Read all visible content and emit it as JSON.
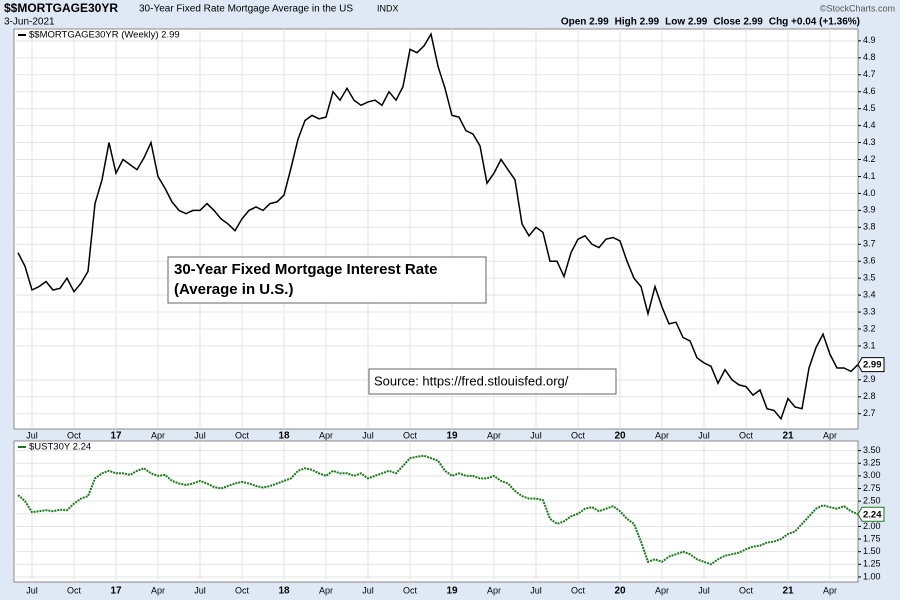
{
  "header": {
    "symbol": "$$MORTGAGE30YR",
    "description": "30-Year Fixed Rate Mortgage Average in the US",
    "exchange": "INDX",
    "date": "3-Jun-2021",
    "quote": [
      "Open 2.99",
      "High 2.99",
      "Low 2.99",
      "Close 2.99",
      "Chg +0.04 (+1.36%)"
    ],
    "brand": "©StockCharts.com"
  },
  "chart_data": [
    {
      "type": "line",
      "legend": "$$MORTGAGE30YR (Weekly) 2.99",
      "last_label": "2.99",
      "annotations": [
        "30-Year Fixed Mortgage Interest Rate",
        "(Average in U.S.)",
        "Source: https://fred.stlouisfed.org/"
      ],
      "categories": [
        null,
        null,
        "Jul",
        null,
        null,
        null,
        null,
        null,
        "Oct",
        null,
        null,
        null,
        null,
        null,
        "17",
        null,
        null,
        null,
        null,
        null,
        "Apr",
        null,
        null,
        null,
        null,
        null,
        "Jul",
        null,
        null,
        null,
        null,
        null,
        "Oct",
        null,
        null,
        null,
        null,
        null,
        "18",
        null,
        null,
        null,
        null,
        null,
        "Apr",
        null,
        null,
        null,
        null,
        null,
        "Jul",
        null,
        null,
        null,
        null,
        null,
        "Oct",
        null,
        null,
        null,
        null,
        null,
        "19",
        null,
        null,
        null,
        null,
        null,
        "Apr",
        null,
        null,
        null,
        null,
        null,
        "Jul",
        null,
        null,
        null,
        null,
        null,
        "Oct",
        null,
        null,
        null,
        null,
        null,
        "20",
        null,
        null,
        null,
        null,
        null,
        "Apr",
        null,
        null,
        null,
        null,
        null,
        "Jul",
        null,
        null,
        null,
        null,
        null,
        "Oct",
        null,
        null,
        null,
        null,
        null,
        "21",
        null,
        null,
        null,
        null,
        null,
        "Apr",
        null,
        null,
        null,
        null
      ],
      "series": [
        {
          "name": "$$MORTGAGE30YR",
          "color": "#000000",
          "values": [
            3.65,
            3.57,
            3.43,
            3.45,
            3.48,
            3.43,
            3.44,
            3.5,
            3.42,
            3.47,
            3.54,
            3.94,
            4.08,
            4.3,
            4.12,
            4.2,
            4.17,
            4.14,
            4.21,
            4.3,
            4.1,
            4.03,
            3.95,
            3.9,
            3.88,
            3.9,
            3.9,
            3.94,
            3.9,
            3.85,
            3.82,
            3.78,
            3.85,
            3.9,
            3.92,
            3.9,
            3.94,
            3.95,
            3.99,
            4.15,
            4.32,
            4.43,
            4.46,
            4.44,
            4.45,
            4.6,
            4.55,
            4.62,
            4.55,
            4.52,
            4.54,
            4.55,
            4.52,
            4.6,
            4.55,
            4.63,
            4.85,
            4.83,
            4.87,
            4.94,
            4.75,
            4.62,
            4.46,
            4.45,
            4.37,
            4.35,
            4.28,
            4.06,
            4.12,
            4.2,
            4.14,
            4.08,
            3.82,
            3.75,
            3.8,
            3.77,
            3.6,
            3.6,
            3.51,
            3.65,
            3.73,
            3.75,
            3.7,
            3.68,
            3.73,
            3.74,
            3.72,
            3.6,
            3.5,
            3.45,
            3.29,
            3.45,
            3.33,
            3.23,
            3.24,
            3.15,
            3.13,
            3.03,
            3.0,
            2.98,
            2.88,
            2.96,
            2.9,
            2.87,
            2.86,
            2.81,
            2.84,
            2.73,
            2.72,
            2.67,
            2.79,
            2.74,
            2.73,
            2.97,
            3.09,
            3.17,
            3.05,
            2.97,
            2.97,
            2.95,
            2.99
          ]
        }
      ],
      "ylim": [
        2.61,
        4.97
      ],
      "yticks": [
        2.7,
        2.8,
        2.9,
        3.1,
        3.2,
        3.3,
        3.4,
        3.5,
        3.6,
        3.7,
        3.8,
        3.9,
        {
          "value": 4,
          "label": "4.0"
        },
        4.1,
        4.2,
        4.3,
        4.4,
        4.5,
        4.6,
        4.7,
        4.8,
        4.9
      ],
      "grid": true
    },
    {
      "type": "line",
      "legend": "$UST30Y 2.24",
      "last_label": "2.24",
      "categories": [
        null,
        null,
        "Jul",
        null,
        null,
        null,
        null,
        null,
        "Oct",
        null,
        null,
        null,
        null,
        null,
        "17",
        null,
        null,
        null,
        null,
        null,
        "Apr",
        null,
        null,
        null,
        null,
        null,
        "Jul",
        null,
        null,
        null,
        null,
        null,
        "Oct",
        null,
        null,
        null,
        null,
        null,
        "18",
        null,
        null,
        null,
        null,
        null,
        "Apr",
        null,
        null,
        null,
        null,
        null,
        "Jul",
        null,
        null,
        null,
        null,
        null,
        "Oct",
        null,
        null,
        null,
        null,
        null,
        "19",
        null,
        null,
        null,
        null,
        null,
        "Apr",
        null,
        null,
        null,
        null,
        null,
        "Jul",
        null,
        null,
        null,
        null,
        null,
        "Oct",
        null,
        null,
        null,
        null,
        null,
        "20",
        null,
        null,
        null,
        null,
        null,
        "Apr",
        null,
        null,
        null,
        null,
        null,
        "Jul",
        null,
        null,
        null,
        null,
        null,
        "Oct",
        null,
        null,
        null,
        null,
        null,
        "21",
        null,
        null,
        null,
        null,
        null,
        "Apr",
        null,
        null,
        null,
        null
      ],
      "series": [
        {
          "name": "$UST30Y",
          "color": "#1a7a1a",
          "values": [
            2.62,
            2.5,
            2.28,
            2.3,
            2.32,
            2.3,
            2.33,
            2.32,
            2.45,
            2.55,
            2.6,
            2.95,
            3.05,
            3.1,
            3.05,
            3.05,
            3.02,
            3.1,
            3.15,
            3.05,
            3.0,
            3.02,
            2.9,
            2.85,
            2.82,
            2.85,
            2.9,
            2.85,
            2.78,
            2.75,
            2.8,
            2.85,
            2.88,
            2.85,
            2.8,
            2.77,
            2.8,
            2.85,
            2.9,
            2.95,
            3.1,
            3.15,
            3.12,
            3.05,
            3.0,
            3.1,
            3.05,
            3.05,
            3.0,
            3.05,
            2.95,
            3.0,
            3.05,
            3.1,
            3.05,
            3.2,
            3.35,
            3.38,
            3.4,
            3.35,
            3.3,
            3.1,
            3.0,
            3.05,
            3.0,
            3.0,
            2.95,
            2.95,
            3.0,
            2.9,
            2.85,
            2.7,
            2.6,
            2.55,
            2.55,
            2.52,
            2.15,
            2.05,
            2.1,
            2.2,
            2.25,
            2.35,
            2.38,
            2.3,
            2.35,
            2.4,
            2.3,
            2.15,
            2.05,
            1.7,
            1.3,
            1.35,
            1.3,
            1.4,
            1.45,
            1.5,
            1.45,
            1.35,
            1.3,
            1.25,
            1.35,
            1.42,
            1.45,
            1.48,
            1.55,
            1.6,
            1.62,
            1.68,
            1.7,
            1.75,
            1.85,
            1.9,
            2.05,
            2.2,
            2.35,
            2.42,
            2.38,
            2.35,
            2.4,
            2.3,
            2.24
          ]
        }
      ],
      "ylim": [
        0.9,
        3.69
      ],
      "yticks": [
        {
          "value": 1,
          "label": "1.00"
        },
        {
          "value": 1.25,
          "label": "1.25"
        },
        {
          "value": 1.5,
          "label": "1.50"
        },
        {
          "value": 1.75,
          "label": "1.75"
        },
        {
          "value": 2,
          "label": "2.00"
        },
        {
          "value": 2.25,
          "label": "2.25"
        },
        {
          "value": 2.5,
          "label": "2.50"
        },
        {
          "value": 2.75,
          "label": "2.75"
        },
        {
          "value": 3,
          "label": "3.00"
        },
        {
          "value": 3.25,
          "label": "3.25"
        },
        {
          "value": 3.5,
          "label": "3.50"
        }
      ],
      "grid": true
    }
  ]
}
